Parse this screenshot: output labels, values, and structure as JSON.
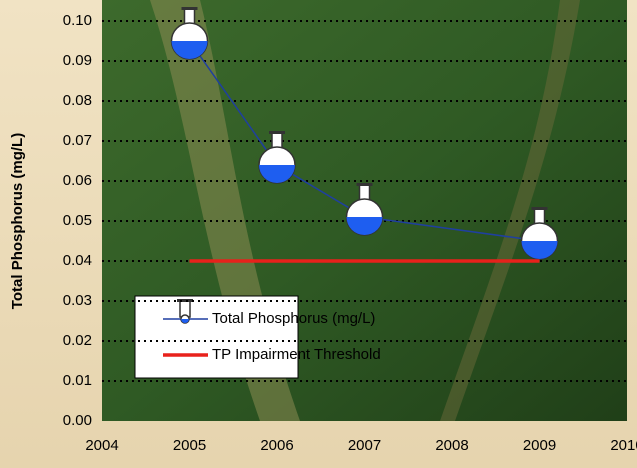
{
  "chart_data": {
    "type": "line",
    "y_label": "Total Phosphorus (mg/L)",
    "xlim": [
      2004,
      2010
    ],
    "xticks": [
      2004,
      2005,
      2006,
      2007,
      2008,
      2009,
      2010
    ],
    "ylim": [
      0,
      0.1
    ],
    "yticks": [
      {
        "value": 0,
        "label": "0.00"
      },
      0.01,
      0.02,
      0.03,
      0.04,
      0.05,
      0.06,
      0.07,
      0.08,
      0.09,
      {
        "value": 0.1,
        "label": "0.10"
      }
    ],
    "grid": true,
    "series": [
      {
        "name": "Total Phosphorus (mg/L)",
        "color": "#1f3fa0",
        "marker": "flask",
        "x": [
          2005,
          2006,
          2007,
          2009
        ],
        "values": [
          0.095,
          0.064,
          0.051,
          0.045
        ]
      },
      {
        "name": "TP Impairment Threshold",
        "color": "#e8211b",
        "x": [
          2005,
          2009
        ],
        "values": [
          0.04,
          0.04
        ]
      }
    ]
  }
}
